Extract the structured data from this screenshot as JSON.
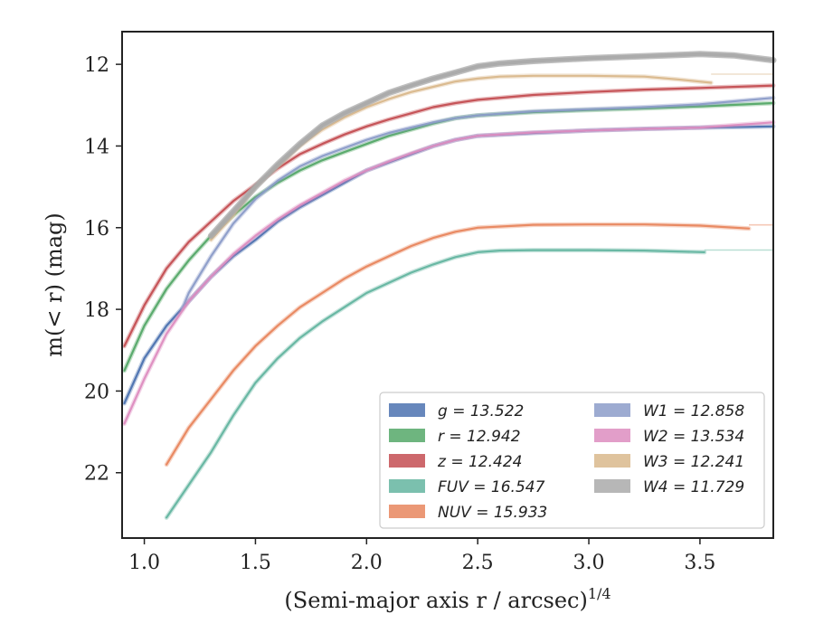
{
  "chart_data": {
    "type": "line",
    "xlabel": "(Semi-major axis r / arcsec)",
    "xlabel_exp": "1/4",
    "ylabel": "m(< r) (mag)",
    "xlim": [
      0.9,
      3.83
    ],
    "ylim": [
      23.6,
      11.2
    ],
    "y_inverted": true,
    "xticks": [
      1.0,
      1.5,
      2.0,
      2.5,
      3.0,
      3.5
    ],
    "xtick_labels": [
      "1.0",
      "1.5",
      "2.0",
      "2.5",
      "3.0",
      "3.5"
    ],
    "yticks": [
      12,
      14,
      16,
      18,
      20,
      22
    ],
    "ytick_labels": [
      "12",
      "14",
      "16",
      "18",
      "20",
      "22"
    ],
    "grid": false,
    "legend_position": "bottom-right",
    "series": [
      {
        "name": "g",
        "legend_label": "g = 13.522",
        "color": "#4C72B0",
        "asymptote": 13.522,
        "x": [
          0.91,
          1.0,
          1.1,
          1.2,
          1.3,
          1.4,
          1.5,
          1.6,
          1.7,
          1.8,
          1.9,
          2.0,
          2.1,
          2.2,
          2.3,
          2.4,
          2.5,
          2.75,
          3.0,
          3.25,
          3.5,
          3.83
        ],
        "y": [
          20.3,
          19.2,
          18.4,
          17.8,
          17.2,
          16.7,
          16.3,
          15.85,
          15.5,
          15.2,
          14.9,
          14.6,
          14.4,
          14.2,
          14.0,
          13.85,
          13.75,
          13.68,
          13.62,
          13.58,
          13.55,
          13.52
        ]
      },
      {
        "name": "r",
        "legend_label": "r = 12.942",
        "color": "#55A868",
        "asymptote": 12.942,
        "x": [
          0.91,
          1.0,
          1.1,
          1.2,
          1.3,
          1.4,
          1.5,
          1.6,
          1.7,
          1.8,
          1.9,
          2.0,
          2.1,
          2.2,
          2.3,
          2.4,
          2.5,
          2.75,
          3.0,
          3.25,
          3.5,
          3.83
        ],
        "y": [
          19.5,
          18.4,
          17.5,
          16.8,
          16.2,
          15.7,
          15.25,
          14.9,
          14.6,
          14.35,
          14.15,
          13.95,
          13.75,
          13.6,
          13.45,
          13.32,
          13.25,
          13.17,
          13.12,
          13.08,
          13.03,
          12.95
        ]
      },
      {
        "name": "z",
        "legend_label": "z = 12.424",
        "color": "#C44E52",
        "asymptote": 12.424,
        "x": [
          0.91,
          1.0,
          1.1,
          1.2,
          1.3,
          1.4,
          1.5,
          1.6,
          1.7,
          1.8,
          1.9,
          2.0,
          2.1,
          2.2,
          2.3,
          2.4,
          2.5,
          2.75,
          3.0,
          3.25,
          3.5,
          3.83
        ],
        "y": [
          18.9,
          17.9,
          17.0,
          16.35,
          15.85,
          15.35,
          14.95,
          14.55,
          14.2,
          13.95,
          13.72,
          13.52,
          13.35,
          13.2,
          13.05,
          12.95,
          12.87,
          12.75,
          12.68,
          12.62,
          12.58,
          12.52
        ]
      },
      {
        "name": "FUV",
        "legend_label": "FUV = 16.547",
        "color": "#64B5A0",
        "asymptote": 16.547,
        "x": [
          1.1,
          1.2,
          1.3,
          1.4,
          1.5,
          1.6,
          1.7,
          1.8,
          1.9,
          2.0,
          2.1,
          2.2,
          2.3,
          2.4,
          2.5,
          2.6,
          2.75,
          3.0,
          3.25,
          3.52
        ],
        "y": [
          23.1,
          22.3,
          21.5,
          20.6,
          19.8,
          19.2,
          18.7,
          18.3,
          17.95,
          17.6,
          17.35,
          17.1,
          16.9,
          16.72,
          16.6,
          16.56,
          16.55,
          16.55,
          16.56,
          16.6
        ]
      },
      {
        "name": "NUV",
        "legend_label": "NUV = 15.933",
        "color": "#E8865E",
        "asymptote": 15.933,
        "x": [
          1.1,
          1.2,
          1.3,
          1.4,
          1.5,
          1.6,
          1.7,
          1.8,
          1.9,
          2.0,
          2.1,
          2.2,
          2.3,
          2.4,
          2.5,
          2.75,
          3.0,
          3.25,
          3.5,
          3.72
        ],
        "y": [
          21.8,
          20.9,
          20.2,
          19.5,
          18.9,
          18.4,
          17.95,
          17.6,
          17.25,
          16.95,
          16.7,
          16.45,
          16.25,
          16.1,
          16.0,
          15.93,
          15.92,
          15.92,
          15.95,
          16.02
        ]
      },
      {
        "name": "W1",
        "legend_label": "W1 = 12.858",
        "color": "#8C9CC9",
        "asymptote": 12.858,
        "x": [
          1.17,
          1.2,
          1.3,
          1.4,
          1.5,
          1.6,
          1.7,
          1.8,
          1.9,
          2.0,
          2.1,
          2.2,
          2.3,
          2.4,
          2.5,
          2.75,
          3.0,
          3.25,
          3.5,
          3.83
        ],
        "y": [
          18.0,
          17.6,
          16.7,
          15.9,
          15.3,
          14.85,
          14.5,
          14.25,
          14.05,
          13.85,
          13.68,
          13.55,
          13.42,
          13.32,
          13.25,
          13.15,
          13.1,
          13.05,
          12.98,
          12.82
        ]
      },
      {
        "name": "W2",
        "legend_label": "W2 = 13.534",
        "color": "#DD8DC0",
        "asymptote": 13.534,
        "x": [
          0.91,
          1.0,
          1.1,
          1.2,
          1.3,
          1.4,
          1.5,
          1.6,
          1.7,
          1.8,
          1.9,
          2.0,
          2.1,
          2.2,
          2.3,
          2.4,
          2.5,
          2.75,
          3.0,
          3.25,
          3.5,
          3.83
        ],
        "y": [
          20.8,
          19.7,
          18.6,
          17.8,
          17.2,
          16.65,
          16.2,
          15.8,
          15.45,
          15.15,
          14.85,
          14.6,
          14.38,
          14.18,
          14.0,
          13.85,
          13.75,
          13.67,
          13.62,
          13.58,
          13.55,
          13.42
        ]
      },
      {
        "name": "W3",
        "legend_label": "W3 = 12.241",
        "color": "#D9B88C",
        "asymptote": 12.241,
        "x": [
          1.3,
          1.4,
          1.5,
          1.6,
          1.7,
          1.8,
          1.9,
          2.0,
          2.1,
          2.2,
          2.3,
          2.4,
          2.5,
          2.6,
          2.75,
          3.0,
          3.25,
          3.4,
          3.55
        ],
        "y": [
          16.3,
          15.7,
          15.0,
          14.5,
          14.0,
          13.6,
          13.3,
          13.05,
          12.85,
          12.68,
          12.55,
          12.42,
          12.35,
          12.3,
          12.28,
          12.28,
          12.3,
          12.37,
          12.45
        ]
      },
      {
        "name": "W4",
        "legend_label": "W4 = 11.729",
        "color": "#AAAAAA",
        "asymptote": 11.729,
        "x": [
          1.3,
          1.4,
          1.5,
          1.6,
          1.7,
          1.8,
          1.9,
          2.0,
          2.1,
          2.2,
          2.3,
          2.4,
          2.5,
          2.6,
          2.75,
          3.0,
          3.25,
          3.5,
          3.65,
          3.83
        ],
        "y": [
          16.2,
          15.6,
          15.0,
          14.45,
          13.95,
          13.5,
          13.2,
          12.95,
          12.7,
          12.52,
          12.35,
          12.2,
          12.05,
          11.98,
          11.92,
          11.85,
          11.8,
          11.75,
          11.78,
          11.9
        ]
      }
    ]
  }
}
